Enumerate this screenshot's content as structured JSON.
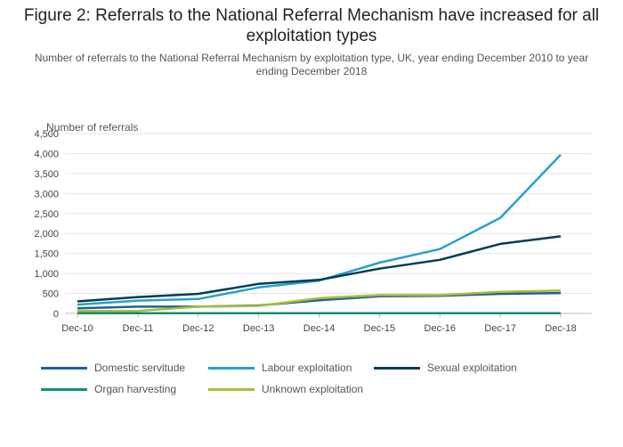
{
  "title": "Figure 2: Referrals to the National Referral Mechanism have increased for all exploitation types",
  "subtitle": "Number of referrals to the National Referral Mechanism by exploitation type, UK, year ending December 2010 to year ending December 2018",
  "chart_data": {
    "type": "line",
    "title": "Figure 2: Referrals to the National Referral Mechanism have increased for all exploitation types",
    "subtitle": "Number of referrals to the National Referral Mechanism by exploitation type, UK, year ending December 2010 to year ending December 2018",
    "xlabel": "",
    "ylabel": "Number of referrals",
    "categories": [
      "Dec-10",
      "Dec-11",
      "Dec-12",
      "Dec-13",
      "Dec-14",
      "Dec-15",
      "Dec-16",
      "Dec-17",
      "Dec-18"
    ],
    "yticks": [
      0,
      500,
      1000,
      1500,
      2000,
      2500,
      3000,
      3500,
      4000,
      4500
    ],
    "ytick_labels": [
      "0",
      "500",
      "1,000",
      "1,500",
      "2,000",
      "2,500",
      "3,000",
      "3,500",
      "4,000",
      "4,500"
    ],
    "ylim": [
      0,
      4500
    ],
    "grid": true,
    "legend_position": "bottom",
    "series": [
      {
        "name": "Domestic servitude",
        "color": "#206095",
        "values": [
          130,
          170,
          170,
          200,
          330,
          430,
          440,
          490,
          510
        ]
      },
      {
        "name": "Labour exploitation",
        "color": "#27a0cc",
        "values": [
          220,
          320,
          360,
          650,
          820,
          1270,
          1610,
          2390,
          3970
        ]
      },
      {
        "name": "Sexual exploitation",
        "color": "#003c57",
        "values": [
          300,
          410,
          490,
          740,
          840,
          1120,
          1340,
          1740,
          1930
        ]
      },
      {
        "name": "Organ harvesting",
        "color": "#118c7b",
        "values": [
          5,
          5,
          5,
          5,
          5,
          5,
          5,
          5,
          5
        ]
      },
      {
        "name": "Unknown exploitation",
        "color": "#a8bd3a",
        "values": [
          60,
          60,
          170,
          190,
          380,
          460,
          460,
          540,
          570
        ]
      }
    ]
  }
}
